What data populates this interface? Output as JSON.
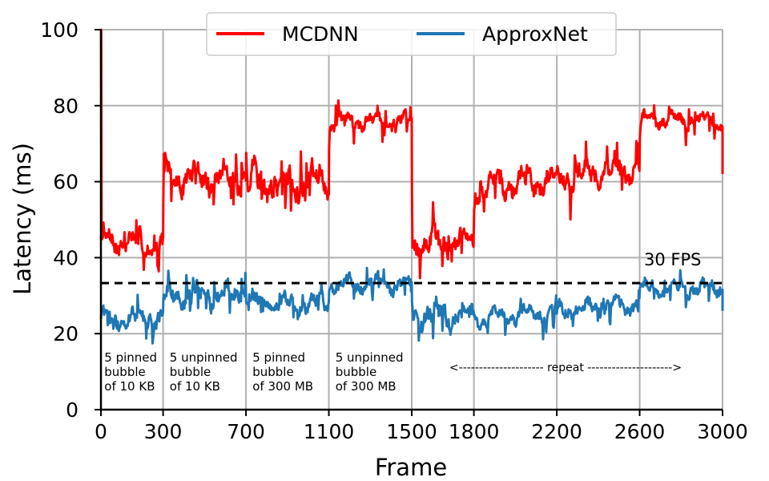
{
  "chart_data": {
    "type": "line",
    "title": "",
    "xlabel": "Frame",
    "ylabel": "Latency (ms)",
    "xlim": [
      0,
      3000
    ],
    "ylim": [
      0,
      100
    ],
    "grid": true,
    "legend_position": "top-center",
    "x_ticks": [
      {
        "value": 0,
        "label": "0"
      },
      {
        "value": 300,
        "label": "300"
      },
      {
        "value": 700,
        "label": "700"
      },
      {
        "value": 1100,
        "label": "1100"
      },
      {
        "value": 1500,
        "label": "1500"
      },
      {
        "value": 1800,
        "label": "1800"
      },
      {
        "value": 2200,
        "label": "2200"
      },
      {
        "value": 2600,
        "label": "2600"
      },
      {
        "value": 3000,
        "label": "3000"
      }
    ],
    "y_ticks": [
      {
        "value": 0,
        "label": "0"
      },
      {
        "value": 20,
        "label": "20"
      },
      {
        "value": 40,
        "label": "40"
      },
      {
        "value": 60,
        "label": "60"
      },
      {
        "value": 80,
        "label": "80"
      },
      {
        "value": 100,
        "label": "100"
      }
    ],
    "series": [
      {
        "name": "MCDNN",
        "color": "#ff0000",
        "segments": [
          {
            "start": 0,
            "end": 300,
            "level": 44,
            "noise": 3.5
          },
          {
            "start": 300,
            "end": 700,
            "level": 61,
            "noise": 4
          },
          {
            "start": 700,
            "end": 1100,
            "level": 60,
            "noise": 5
          },
          {
            "start": 1100,
            "end": 1500,
            "level": 76,
            "noise": 2.5
          },
          {
            "start": 1500,
            "end": 1800,
            "level": 44,
            "noise": 4
          },
          {
            "start": 1800,
            "end": 2600,
            "level": 61,
            "noise": 4
          },
          {
            "start": 2600,
            "end": 3000,
            "level": 76,
            "noise": 2.5
          }
        ],
        "initial_spike": 100,
        "end_value": 62
      },
      {
        "name": "ApproxNet",
        "color": "#1f77b4",
        "segments": [
          {
            "start": 0,
            "end": 300,
            "level": 24,
            "noise": 3
          },
          {
            "start": 300,
            "end": 700,
            "level": 30,
            "noise": 3.5
          },
          {
            "start": 700,
            "end": 1100,
            "level": 28,
            "noise": 2.5
          },
          {
            "start": 1100,
            "end": 1500,
            "level": 33,
            "noise": 2.5
          },
          {
            "start": 1500,
            "end": 1800,
            "level": 25,
            "noise": 4
          },
          {
            "start": 1800,
            "end": 2600,
            "level": 26,
            "noise": 2.5
          },
          {
            "start": 2600,
            "end": 3000,
            "level": 32,
            "noise": 2.5
          }
        ],
        "end_value": 26
      }
    ],
    "reference_line": {
      "value": 33.3,
      "label": "30 FPS",
      "color": "#000000"
    },
    "annotations": [
      {
        "x": 5,
        "lines": [
          "5 pinned",
          "bubble",
          "of 10 KB"
        ]
      },
      {
        "x": 320,
        "lines": [
          "5 unpinned",
          "bubble",
          "of 10 KB"
        ]
      },
      {
        "x": 720,
        "lines": [
          "5 pinned",
          "bubble",
          "of 300 MB"
        ]
      },
      {
        "x": 1120,
        "lines": [
          "5 unpinned",
          "bubble",
          "of 300 MB"
        ]
      }
    ],
    "repeat_label": "<--------------------- repeat --------------------->"
  }
}
